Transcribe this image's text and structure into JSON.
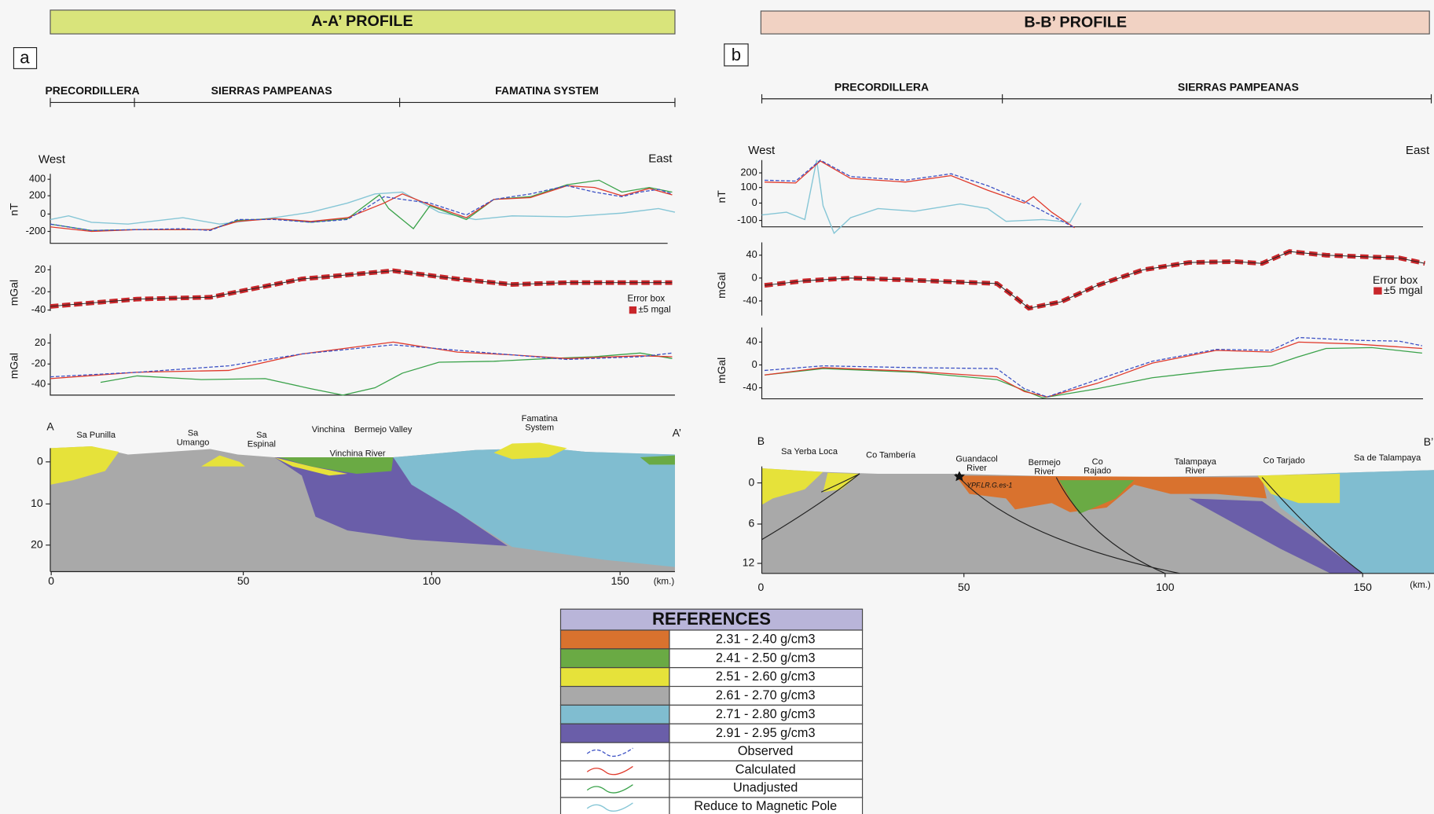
{
  "panel_a": {
    "header": "A-A’ PROFILE",
    "label": "a",
    "provinces": [
      "PRECORDILLERA",
      "SIERRAS PAMPEANAS",
      "FAMATINA SYSTEM"
    ],
    "west": "West",
    "east": "East",
    "magnetic": {
      "unit": "nT",
      "ticks": [
        "400",
        "200",
        "0",
        "-200"
      ]
    },
    "gravity": {
      "unit": "mGal",
      "ticks": [
        "20",
        "-20",
        "-40"
      ],
      "error_box": "Error box",
      "error_value": "±5 mgal"
    },
    "gravity_model": {
      "unit": "mGal",
      "ticks": [
        "20",
        "-20",
        "-40"
      ]
    },
    "section": {
      "start": "A",
      "end": "A’",
      "depth_ticks": [
        "0",
        "10",
        "20"
      ],
      "distance_ticks": [
        "0",
        "50",
        "100",
        "150"
      ],
      "distance_unit": "(km.)",
      "places": [
        [
          "Sa Punilla"
        ],
        [
          "Sa",
          "Umango"
        ],
        [
          "Sa",
          "Espinal"
        ],
        [
          "Vinchina"
        ],
        [
          "Bermejo Valley"
        ],
        [
          "Vinchina River"
        ],
        [
          "Famatina",
          "System"
        ]
      ]
    }
  },
  "panel_b": {
    "header": "B-B’ PROFILE",
    "label": "b",
    "provinces": [
      "PRECORDILLERA",
      "SIERRAS PAMPEANAS"
    ],
    "west": "West",
    "east": "East",
    "magnetic": {
      "unit": "nT",
      "ticks": [
        "200",
        "100",
        "0",
        "-100"
      ]
    },
    "gravity": {
      "unit": "mGal",
      "ticks": [
        "40",
        "0",
        "-40"
      ],
      "error_box": "Error box",
      "error_value": "±5 mgal"
    },
    "gravity_model": {
      "unit": "mGal",
      "ticks": [
        "40",
        "0",
        "-40"
      ]
    },
    "section": {
      "start": "B",
      "end": "B’",
      "depth_ticks": [
        "0",
        "6",
        "12"
      ],
      "distance_ticks": [
        "0",
        "50",
        "100",
        "150"
      ],
      "distance_unit": "(km.)",
      "places": [
        [
          "Sa Yerba Loca"
        ],
        [
          "Co Tambería"
        ],
        [
          "Guandacol",
          "River"
        ],
        [
          "Bermejo",
          "River"
        ],
        [
          "Co",
          "Rajado"
        ],
        [
          "Talampaya",
          "River"
        ],
        [
          "Co Tarjado"
        ],
        [
          "Sa de Talampaya"
        ]
      ],
      "well": "YPF.LR.G.es-1"
    }
  },
  "references": {
    "title": "REFERENCES",
    "densities": [
      "2.31 - 2.40 g/cm3",
      "2.41 - 2.50 g/cm3",
      "2.51 - 2.60 g/cm3",
      "2.61 - 2.70 g/cm3",
      "2.71 - 2.80 g/cm3",
      "2.91 - 2.95 g/cm3"
    ],
    "lines": [
      "Observed",
      "Calculated",
      "Unadjusted",
      "Reduce to Magnetic Pole"
    ]
  }
}
